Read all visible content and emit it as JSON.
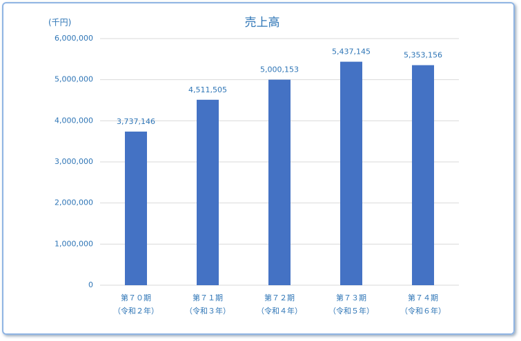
{
  "chart_data": {
    "type": "bar",
    "title": "売上高",
    "y_unit": "(千円)",
    "categories": [
      [
        "第７０期",
        "（令和２年）"
      ],
      [
        "第７１期",
        "（令和３年）"
      ],
      [
        "第７２期",
        "（令和４年）"
      ],
      [
        "第７３期",
        "（令和５年）"
      ],
      [
        "第７４期",
        "（令和６年）"
      ]
    ],
    "values": [
      3737146,
      4511505,
      5000153,
      5437145,
      5353156
    ],
    "value_labels": [
      "3,737,146",
      "4,511,505",
      "5,000,153",
      "5,437,145",
      "5,353,156"
    ],
    "color": "#4472c4",
    "ylim": [
      0,
      6000000
    ],
    "yticks": [
      0,
      {
        "value": 1000000,
        "label": "1,000,000"
      },
      {
        "value": 2000000,
        "label": "2,000,000"
      },
      {
        "value": 3000000,
        "label": "3,000,000"
      },
      {
        "value": 4000000,
        "label": "4,000,000"
      },
      {
        "value": 5000000,
        "label": "5,000,000"
      },
      {
        "value": 6000000,
        "label": "6,000,000"
      }
    ],
    "grid": true
  }
}
